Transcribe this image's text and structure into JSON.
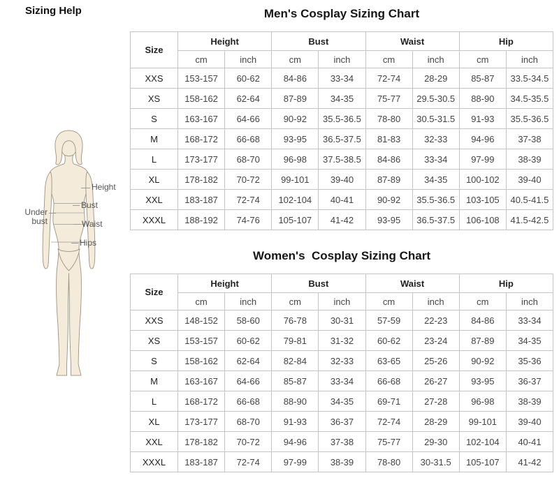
{
  "page_title": "Sizing Help",
  "figure": {
    "height_label": "Height",
    "bust_label": "Bust",
    "under_bust_label": "Under bust",
    "waist_label": "Waist",
    "hips_label": "Hips"
  },
  "tables": [
    {
      "title": "Men's Cosplay Sizing Chart",
      "size_header": "Size",
      "group_headers": [
        "Height",
        "Bust",
        "Waist",
        "Hip"
      ],
      "unit_headers": [
        "cm",
        "inch",
        "cm",
        "inch",
        "cm",
        "inch",
        "cm",
        "inch"
      ],
      "rows": [
        {
          "size": "XXS",
          "values": [
            "153-157",
            "60-62",
            "84-86",
            "33-34",
            "72-74",
            "28-29",
            "85-87",
            "33.5-34.5"
          ]
        },
        {
          "size": "XS",
          "values": [
            "158-162",
            "62-64",
            "87-89",
            "34-35",
            "75-77",
            "29.5-30.5",
            "88-90",
            "34.5-35.5"
          ]
        },
        {
          "size": "S",
          "values": [
            "163-167",
            "64-66",
            "90-92",
            "35.5-36.5",
            "78-80",
            "30.5-31.5",
            "91-93",
            "35.5-36.5"
          ]
        },
        {
          "size": "M",
          "values": [
            "168-172",
            "66-68",
            "93-95",
            "36.5-37.5",
            "81-83",
            "32-33",
            "94-96",
            "37-38"
          ]
        },
        {
          "size": "L",
          "values": [
            "173-177",
            "68-70",
            "96-98",
            "37.5-38.5",
            "84-86",
            "33-34",
            "97-99",
            "38-39"
          ]
        },
        {
          "size": "XL",
          "values": [
            "178-182",
            "70-72",
            "99-101",
            "39-40",
            "87-89",
            "34-35",
            "100-102",
            "39-40"
          ]
        },
        {
          "size": "XXL",
          "values": [
            "183-187",
            "72-74",
            "102-104",
            "40-41",
            "90-92",
            "35.5-36.5",
            "103-105",
            "40.5-41.5"
          ]
        },
        {
          "size": "XXXL",
          "values": [
            "188-192",
            "74-76",
            "105-107",
            "41-42",
            "93-95",
            "36.5-37.5",
            "106-108",
            "41.5-42.5"
          ]
        }
      ]
    },
    {
      "title": "Women's  Cosplay Sizing Chart",
      "size_header": "Size",
      "group_headers": [
        "Height",
        "Bust",
        "Waist",
        "Hip"
      ],
      "unit_headers": [
        "cm",
        "inch",
        "cm",
        "inch",
        "cm",
        "inch",
        "cm",
        "inch"
      ],
      "rows": [
        {
          "size": "XXS",
          "values": [
            "148-152",
            "58-60",
            "76-78",
            "30-31",
            "57-59",
            "22-23",
            "84-86",
            "33-34"
          ]
        },
        {
          "size": "XS",
          "values": [
            "153-157",
            "60-62",
            "79-81",
            "31-32",
            "60-62",
            "23-24",
            "87-89",
            "34-35"
          ]
        },
        {
          "size": "S",
          "values": [
            "158-162",
            "62-64",
            "82-84",
            "32-33",
            "63-65",
            "25-26",
            "90-92",
            "35-36"
          ]
        },
        {
          "size": "M",
          "values": [
            "163-167",
            "64-66",
            "85-87",
            "33-34",
            "66-68",
            "26-27",
            "93-95",
            "36-37"
          ]
        },
        {
          "size": "L",
          "values": [
            "168-172",
            "66-68",
            "88-90",
            "34-35",
            "69-71",
            "27-28",
            "96-98",
            "38-39"
          ]
        },
        {
          "size": "XL",
          "values": [
            "173-177",
            "68-70",
            "91-93",
            "36-37",
            "72-74",
            "28-29",
            "99-101",
            "39-40"
          ]
        },
        {
          "size": "XXL",
          "values": [
            "178-182",
            "70-72",
            "94-96",
            "37-38",
            "75-77",
            "29-30",
            "102-104",
            "40-41"
          ]
        },
        {
          "size": "XXXL",
          "values": [
            "183-187",
            "72-74",
            "97-99",
            "38-39",
            "78-80",
            "30-31.5",
            "105-107",
            "41-42"
          ]
        }
      ]
    }
  ]
}
